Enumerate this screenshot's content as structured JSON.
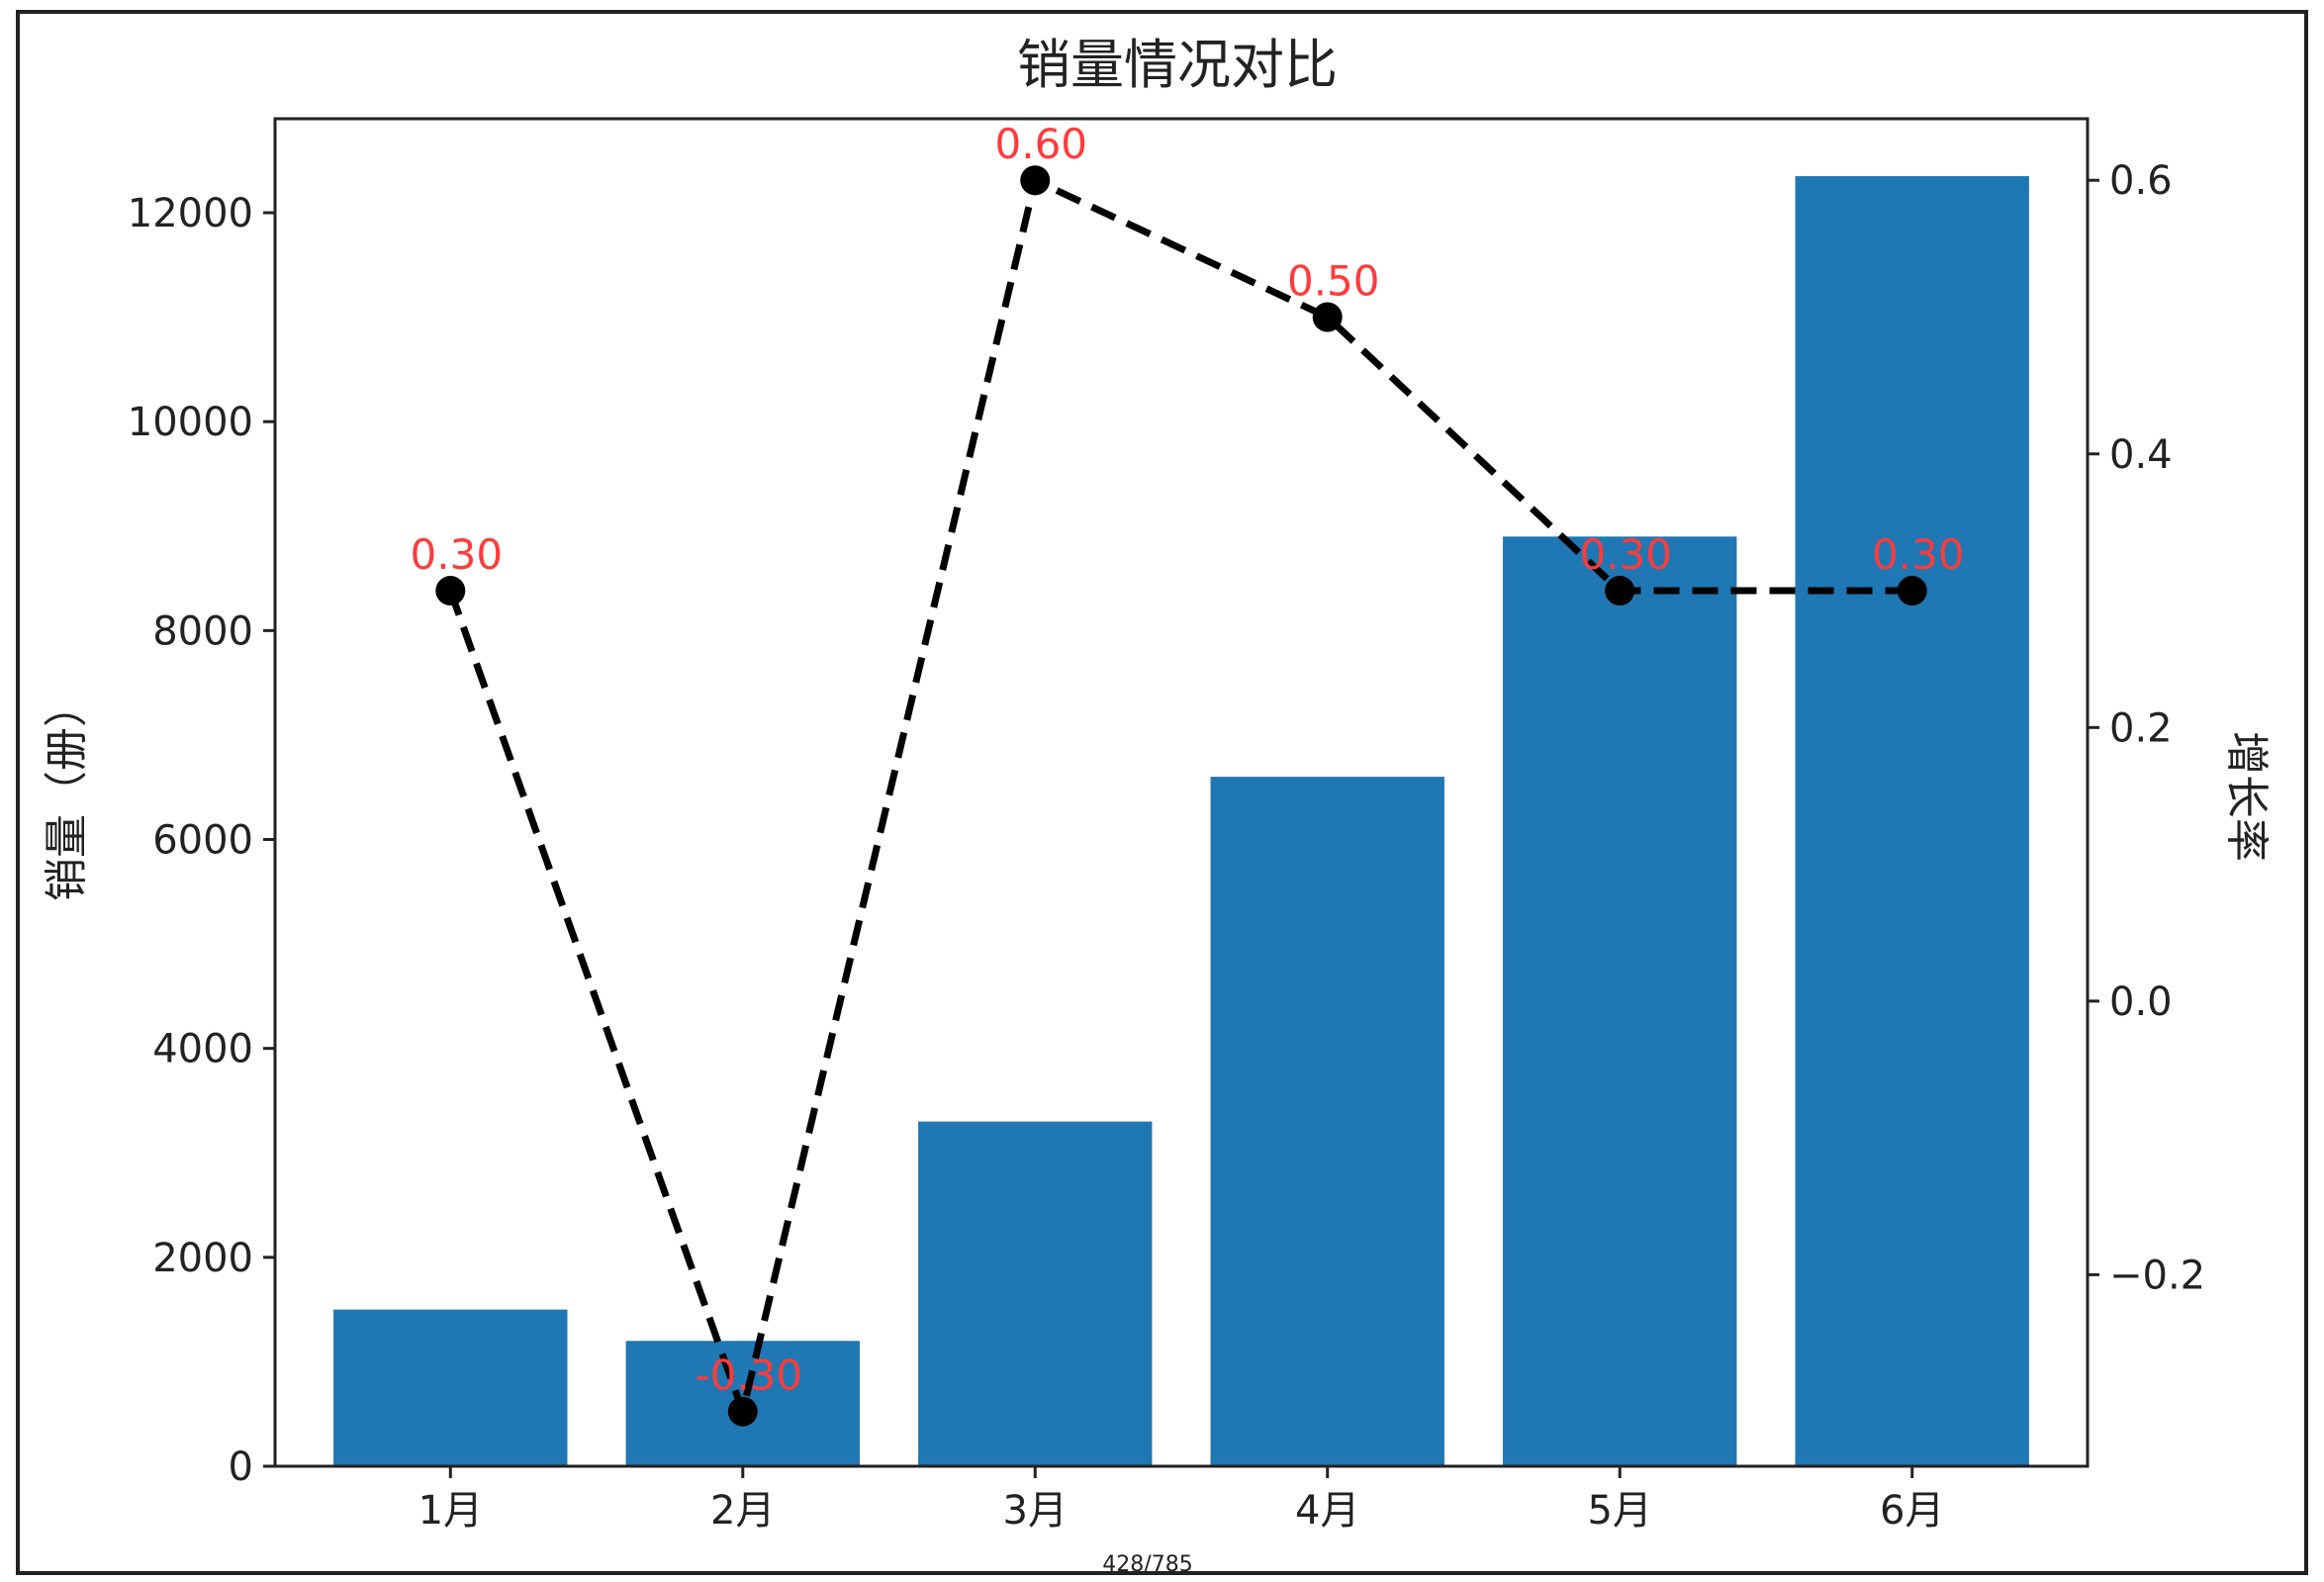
{
  "chart_data": {
    "type": "bar",
    "title": "销量情况对比",
    "categories": [
      "1月",
      "2月",
      "3月",
      "4月",
      "5月",
      "6月"
    ],
    "ylabel": "销量（册）",
    "ylim": [
      0,
      12900
    ],
    "yticks": [
      0,
      2000,
      4000,
      6000,
      8000,
      10000,
      12000
    ],
    "bar_color": "#1f77b4",
    "series": [
      {
        "type": "bar",
        "values": [
          1500,
          1200,
          3300,
          6600,
          8900,
          12350
        ]
      },
      {
        "type": "line",
        "axis": "right",
        "values": [
          0.3,
          -0.3,
          0.6,
          0.5,
          0.3,
          0.3
        ],
        "labels": [
          "0.30",
          "-0.30",
          "0.60",
          "0.50",
          "0.30",
          "0.30"
        ],
        "color": "#000000",
        "label_color": "#ff3b3b",
        "style": "dashed",
        "marker": "circle"
      }
    ],
    "y2label": "增长率",
    "y2lim": [
      -0.34,
      0.645
    ],
    "y2ticks": [
      -0.2,
      0.0,
      0.2,
      0.4,
      0.6
    ],
    "y2tick_labels": [
      "−0.2",
      "0.0",
      "0.2",
      "0.4",
      "0.6"
    ],
    "grid": false,
    "legend": "none"
  },
  "footer": {
    "page_indicator": "428/785"
  }
}
